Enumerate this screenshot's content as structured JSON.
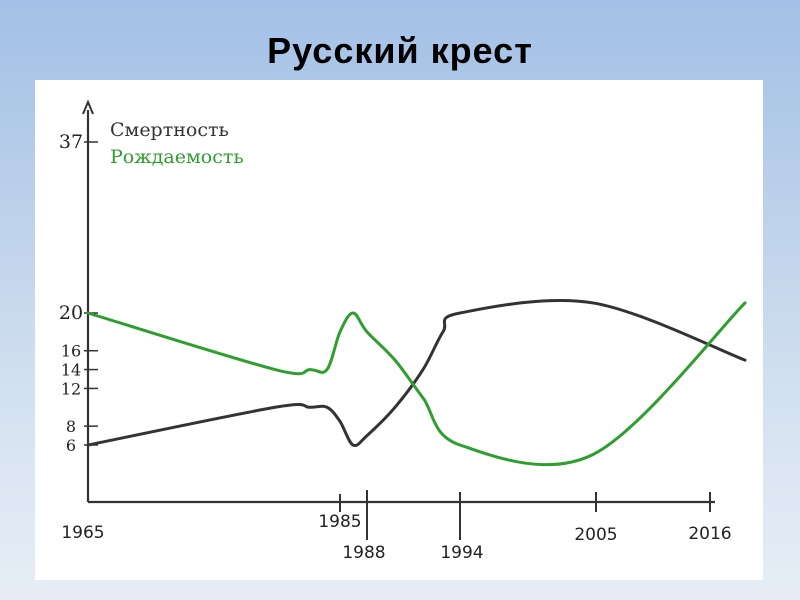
{
  "title": "Русский крест",
  "chart_data": {
    "type": "line",
    "title": "Русский крест",
    "xlabel": "",
    "ylabel": "",
    "y_ticks": [
      6,
      8,
      12,
      14,
      16,
      20,
      37
    ],
    "x_ticks": [
      1965,
      1985,
      1988,
      1994,
      2005,
      2016
    ],
    "x_tick_labels": [
      {
        "value": 1965,
        "label": "1965"
      },
      {
        "value": 1985,
        "label": "1985"
      },
      {
        "value": 1988,
        "label": "1988"
      },
      {
        "value": 1994,
        "label": "1994"
      },
      {
        "value": 2005,
        "label": "2005"
      },
      {
        "value": 2016,
        "label": "2016"
      }
    ],
    "legend_placement": "top-left",
    "grid": false,
    "series": [
      {
        "name": "Смертность",
        "color": "#333333",
        "points": [
          {
            "x": 1965,
            "y": 6
          },
          {
            "x": 1980,
            "y": 10
          },
          {
            "x": 1983,
            "y": 10
          },
          {
            "x": 1984,
            "y": 10
          },
          {
            "x": 1985,
            "y": 8.5
          },
          {
            "x": 1986,
            "y": 6
          },
          {
            "x": 1988,
            "y": 7
          },
          {
            "x": 1990,
            "y": 10
          },
          {
            "x": 1992,
            "y": 14
          },
          {
            "x": 1993,
            "y": 18
          },
          {
            "x": 1994,
            "y": 20
          },
          {
            "x": 2004,
            "y": 21
          },
          {
            "x": 2017,
            "y": 15
          }
        ]
      },
      {
        "name": "Рождаемость",
        "color": "#2e9e2e",
        "points": [
          {
            "x": 1965,
            "y": 20
          },
          {
            "x": 1980,
            "y": 14
          },
          {
            "x": 1983,
            "y": 14
          },
          {
            "x": 1984,
            "y": 14
          },
          {
            "x": 1985,
            "y": 18
          },
          {
            "x": 1986,
            "y": 20
          },
          {
            "x": 1988,
            "y": 18
          },
          {
            "x": 1990,
            "y": 15
          },
          {
            "x": 1992,
            "y": 11
          },
          {
            "x": 1994,
            "y": 6
          },
          {
            "x": 2004,
            "y": 5
          },
          {
            "x": 2017,
            "y": 21
          }
        ]
      }
    ]
  }
}
